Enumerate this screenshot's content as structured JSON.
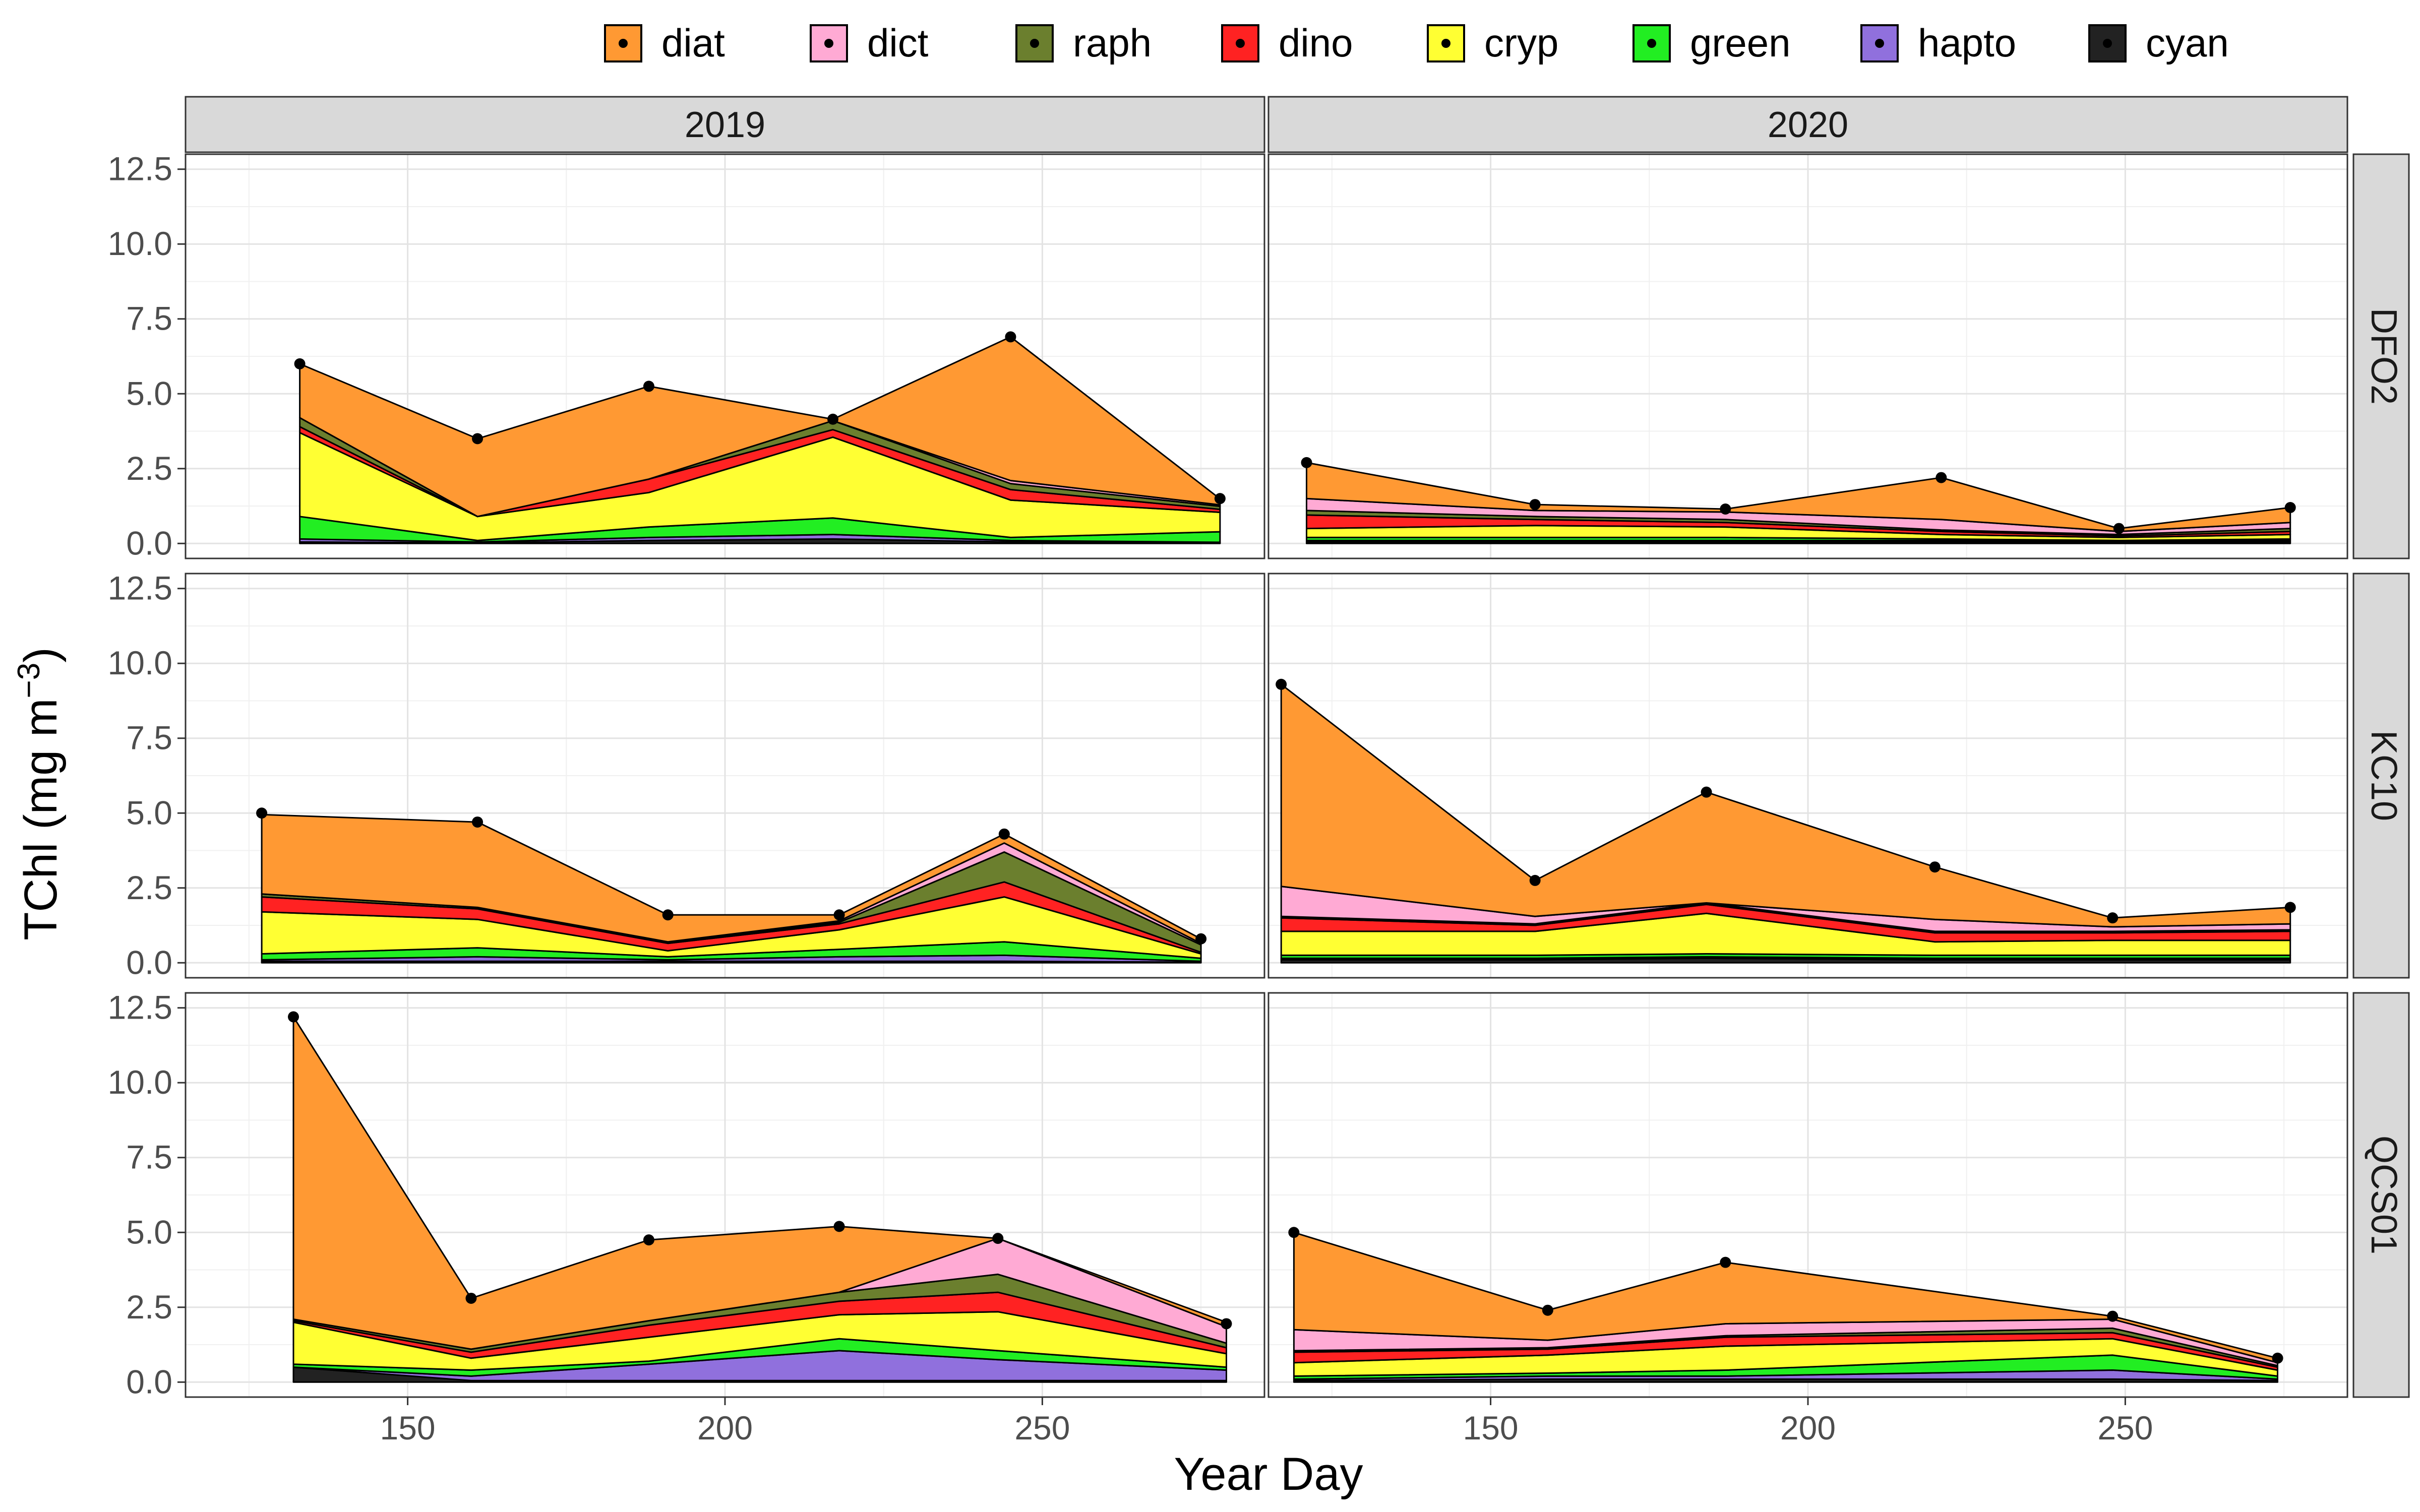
{
  "chart_data": {
    "type": "area",
    "stacked": true,
    "xlabel": "Year Day",
    "ylabel": "TChl (mg m",
    "ylabel_superscript": "−3",
    "ylabel_suffix": ")",
    "ylim": [
      0,
      12.5
    ],
    "xlim": [
      115,
      285
    ],
    "x_ticks": [
      "150",
      "200",
      "250"
    ],
    "y_ticks": [
      "0.0",
      "2.5",
      "5.0",
      "7.5",
      "10.0",
      "12.5"
    ],
    "x_tick_values": [
      150,
      200,
      250
    ],
    "y_tick_values": [
      0,
      2.5,
      5,
      7.5,
      10,
      12.5
    ],
    "grid": true,
    "legend_position": "top",
    "stack_order_bottom_to_top": [
      "cyan",
      "hapto",
      "green",
      "cryp",
      "dino",
      "raph",
      "dict",
      "diat"
    ],
    "legend": [
      {
        "name": "diat",
        "color": "#FF9933"
      },
      {
        "name": "dict",
        "color": "#FFAAD4"
      },
      {
        "name": "raph",
        "color": "#6B7F2E"
      },
      {
        "name": "dino",
        "color": "#FF2222"
      },
      {
        "name": "cryp",
        "color": "#FFFF33"
      },
      {
        "name": "green",
        "color": "#22EE22"
      },
      {
        "name": "hapto",
        "color": "#9070DD"
      },
      {
        "name": "cyan",
        "color": "#222222"
      }
    ],
    "columns": [
      "2019",
      "2020"
    ],
    "rows": [
      "DFO2",
      "KC10",
      "QCS01"
    ],
    "panels": [
      {
        "year": "2019",
        "station": "DFO2",
        "x": [
          133,
          161,
          188,
          217,
          245,
          278
        ],
        "series": [
          {
            "name": "cyan",
            "values": [
              0.05,
              0.02,
              0.1,
              0.15,
              0.05,
              0.02
            ]
          },
          {
            "name": "hapto",
            "values": [
              0.1,
              0.03,
              0.1,
              0.15,
              0.05,
              0.02
            ]
          },
          {
            "name": "green",
            "values": [
              0.75,
              0.05,
              0.35,
              0.55,
              0.1,
              0.35
            ]
          },
          {
            "name": "cryp",
            "values": [
              2.8,
              0.8,
              1.15,
              2.7,
              1.25,
              0.65
            ]
          },
          {
            "name": "dino",
            "values": [
              0.2,
              0.0,
              0.45,
              0.25,
              0.35,
              0.1
            ]
          },
          {
            "name": "raph",
            "values": [
              0.3,
              0.0,
              0.0,
              0.3,
              0.2,
              0.1
            ]
          },
          {
            "name": "dict",
            "values": [
              0.0,
              0.0,
              0.0,
              0.0,
              0.1,
              0.05
            ]
          },
          {
            "name": "diat",
            "values": [
              1.8,
              2.6,
              3.1,
              0.05,
              4.8,
              0.2
            ]
          }
        ],
        "totals": [
          6.0,
          3.5,
          5.25,
          4.15,
          6.9,
          1.5
        ]
      },
      {
        "year": "2020",
        "station": "DFO2",
        "x": [
          121,
          157,
          187,
          221,
          249,
          276
        ],
        "series": [
          {
            "name": "cyan",
            "values": [
              0.05,
              0.05,
              0.05,
              0.05,
              0.05,
              0.05
            ]
          },
          {
            "name": "hapto",
            "values": [
              0.05,
              0.05,
              0.05,
              0.05,
              0.03,
              0.05
            ]
          },
          {
            "name": "green",
            "values": [
              0.1,
              0.1,
              0.1,
              0.05,
              0.02,
              0.05
            ]
          },
          {
            "name": "cryp",
            "values": [
              0.3,
              0.4,
              0.35,
              0.15,
              0.1,
              0.15
            ]
          },
          {
            "name": "dino",
            "values": [
              0.45,
              0.2,
              0.15,
              0.1,
              0.05,
              0.1
            ]
          },
          {
            "name": "raph",
            "values": [
              0.15,
              0.1,
              0.1,
              0.05,
              0.05,
              0.1
            ]
          },
          {
            "name": "dict",
            "values": [
              0.4,
              0.2,
              0.25,
              0.35,
              0.1,
              0.2
            ]
          },
          {
            "name": "diat",
            "values": [
              1.2,
              0.2,
              0.1,
              1.4,
              0.1,
              0.5
            ]
          }
        ],
        "totals": [
          2.7,
          1.3,
          1.15,
          2.2,
          0.5,
          1.2
        ]
      },
      {
        "year": "2019",
        "station": "KC10",
        "x": [
          127,
          161,
          191,
          218,
          244,
          275
        ],
        "series": [
          {
            "name": "cyan",
            "values": [
              0.05,
              0.05,
              0.05,
              0.05,
              0.05,
              0.02
            ]
          },
          {
            "name": "hapto",
            "values": [
              0.05,
              0.15,
              0.05,
              0.15,
              0.2,
              0.03
            ]
          },
          {
            "name": "green",
            "values": [
              0.2,
              0.3,
              0.1,
              0.25,
              0.45,
              0.1
            ]
          },
          {
            "name": "cryp",
            "values": [
              1.4,
              0.95,
              0.2,
              0.65,
              1.5,
              0.15
            ]
          },
          {
            "name": "dino",
            "values": [
              0.5,
              0.35,
              0.25,
              0.2,
              0.5,
              0.05
            ]
          },
          {
            "name": "raph",
            "values": [
              0.1,
              0.05,
              0.05,
              0.05,
              1.0,
              0.25
            ]
          },
          {
            "name": "dict",
            "values": [
              0.0,
              0.0,
              0.0,
              0.05,
              0.3,
              0.05
            ]
          },
          {
            "name": "diat",
            "values": [
              2.65,
              2.85,
              0.9,
              0.2,
              0.3,
              0.15
            ]
          }
        ],
        "totals": [
          5.0,
          4.7,
          1.6,
          1.6,
          4.3,
          0.8
        ]
      },
      {
        "year": "2020",
        "station": "KC10",
        "x": [
          117,
          157,
          184,
          220,
          248,
          276
        ],
        "series": [
          {
            "name": "cyan",
            "values": [
              0.1,
              0.1,
              0.15,
              0.1,
              0.1,
              0.1
            ]
          },
          {
            "name": "hapto",
            "values": [
              0.05,
              0.05,
              0.05,
              0.05,
              0.05,
              0.05
            ]
          },
          {
            "name": "green",
            "values": [
              0.1,
              0.1,
              0.1,
              0.1,
              0.1,
              0.1
            ]
          },
          {
            "name": "cryp",
            "values": [
              0.8,
              0.8,
              1.35,
              0.45,
              0.5,
              0.5
            ]
          },
          {
            "name": "dino",
            "values": [
              0.45,
              0.2,
              0.3,
              0.3,
              0.25,
              0.3
            ]
          },
          {
            "name": "raph",
            "values": [
              0.05,
              0.05,
              0.05,
              0.05,
              0.05,
              0.05
            ]
          },
          {
            "name": "dict",
            "values": [
              1.0,
              0.25,
              0.0,
              0.4,
              0.15,
              0.2
            ]
          },
          {
            "name": "diat",
            "values": [
              6.75,
              1.2,
              3.7,
              1.75,
              0.3,
              0.55
            ]
          }
        ],
        "totals": [
          9.3,
          2.75,
          5.7,
          3.2,
          1.5,
          1.85
        ]
      },
      {
        "year": "2019",
        "station": "QCS01",
        "x": [
          132,
          160,
          188,
          218,
          243,
          279
        ],
        "series": [
          {
            "name": "cyan",
            "values": [
              0.5,
              0.05,
              0.05,
              0.05,
              0.05,
              0.05
            ]
          },
          {
            "name": "hapto",
            "values": [
              0.0,
              0.15,
              0.55,
              1.0,
              0.7,
              0.35
            ]
          },
          {
            "name": "green",
            "values": [
              0.1,
              0.2,
              0.1,
              0.4,
              0.3,
              0.1
            ]
          },
          {
            "name": "cryp",
            "values": [
              1.4,
              0.4,
              0.8,
              0.8,
              1.3,
              0.45
            ]
          },
          {
            "name": "dino",
            "values": [
              0.05,
              0.2,
              0.4,
              0.45,
              0.65,
              0.2
            ]
          },
          {
            "name": "raph",
            "values": [
              0.05,
              0.1,
              0.15,
              0.3,
              0.6,
              0.15
            ]
          },
          {
            "name": "dict",
            "values": [
              0.0,
              0.0,
              0.0,
              0.0,
              1.2,
              0.55
            ]
          },
          {
            "name": "diat",
            "values": [
              10.1,
              1.7,
              2.7,
              2.2,
              0.0,
              0.15
            ]
          }
        ],
        "totals": [
          12.2,
          2.8,
          4.75,
          5.2,
          4.8,
          1.95
        ]
      },
      {
        "year": "2020",
        "station": "QCS01",
        "x": [
          119,
          159,
          187,
          248,
          274
        ],
        "series": [
          {
            "name": "cyan",
            "values": [
              0.05,
              0.1,
              0.1,
              0.1,
              0.05
            ]
          },
          {
            "name": "hapto",
            "values": [
              0.05,
              0.1,
              0.1,
              0.3,
              0.05
            ]
          },
          {
            "name": "green",
            "values": [
              0.1,
              0.1,
              0.2,
              0.5,
              0.1
            ]
          },
          {
            "name": "cryp",
            "values": [
              0.45,
              0.6,
              0.8,
              0.55,
              0.2
            ]
          },
          {
            "name": "dino",
            "values": [
              0.35,
              0.2,
              0.3,
              0.2,
              0.1
            ]
          },
          {
            "name": "raph",
            "values": [
              0.05,
              0.05,
              0.05,
              0.15,
              0.05
            ]
          },
          {
            "name": "dict",
            "values": [
              0.7,
              0.25,
              0.4,
              0.3,
              0.1
            ]
          },
          {
            "name": "diat",
            "values": [
              3.25,
              1.0,
              2.05,
              0.1,
              0.15
            ]
          }
        ],
        "totals": [
          5.0,
          2.4,
          4.0,
          2.2,
          0.8
        ]
      }
    ]
  }
}
